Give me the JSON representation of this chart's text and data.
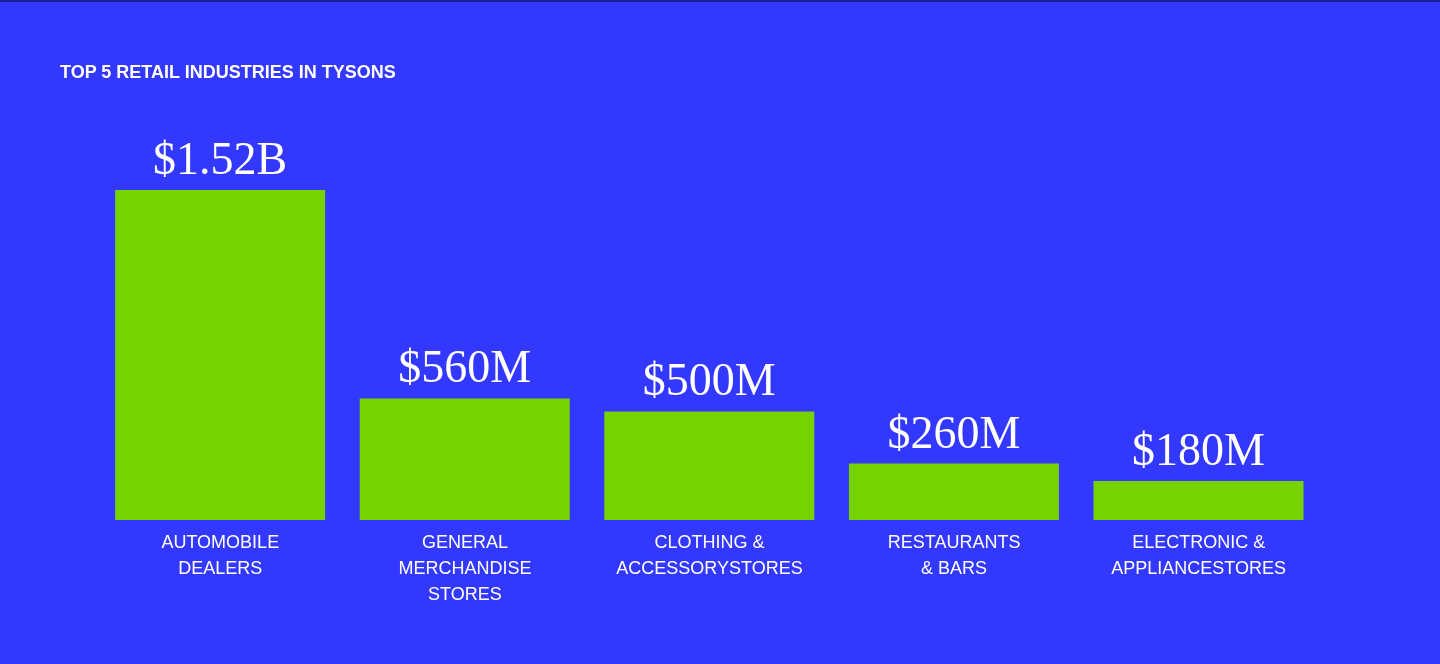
{
  "chart_data": {
    "type": "bar",
    "title": "TOP 5 RETAIL INDUSTRIES IN TYSONS",
    "categories": [
      "AUTOMOBILE\nDEALERS",
      "GENERAL\nMERCHANDISE\nSTORES",
      "CLOTHING &\nACCESSORYSTORES",
      "RESTAURANTS\n& BARS",
      "ELECTRONIC &\nAPPLIANCESTORES"
    ],
    "values": [
      1520000000,
      560000000,
      500000000,
      260000000,
      180000000
    ],
    "value_labels": [
      "$1.52B",
      "$560M",
      "$500M",
      "$260M",
      "$180M"
    ],
    "color": "#77d300",
    "grid": false,
    "legend": false
  }
}
